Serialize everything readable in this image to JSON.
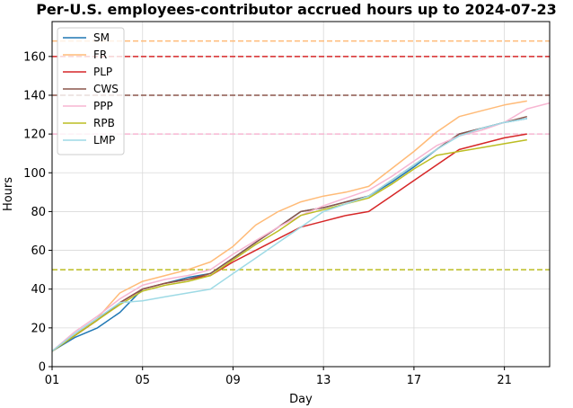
{
  "chart_data": {
    "type": "line",
    "title": "Per-U.S. employees-contributor accrued hours up to 2024-07-23",
    "xlabel": "Day",
    "ylabel": "Hours",
    "xlim": [
      1,
      23
    ],
    "ylim": [
      0,
      178
    ],
    "x_ticks": [
      "01",
      "05",
      "09",
      "13",
      "17",
      "21"
    ],
    "x_tick_values": [
      1,
      5,
      9,
      13,
      17,
      21
    ],
    "y_ticks": [
      0,
      20,
      40,
      60,
      80,
      100,
      120,
      140,
      160
    ],
    "grid": true,
    "legend_position": "top-left",
    "series": [
      {
        "name": "SM",
        "color": "#1f77b4",
        "x": [
          1,
          2,
          3,
          4,
          5,
          6,
          7,
          8,
          9,
          10,
          11,
          12,
          13,
          14,
          15,
          16,
          17,
          18,
          19,
          20,
          21,
          22
        ],
        "y": [
          8,
          15,
          20,
          28,
          40,
          43,
          46,
          48,
          56,
          64,
          72,
          80,
          82,
          85,
          88,
          95,
          103,
          112,
          120,
          123,
          126,
          128
        ]
      },
      {
        "name": "FR",
        "color": "#ffbb78",
        "x": [
          1,
          2,
          3,
          4,
          5,
          6,
          7,
          8,
          9,
          10,
          11,
          12,
          13,
          14,
          15,
          16,
          17,
          18,
          19,
          20,
          21,
          22
        ],
        "y": [
          8,
          16,
          25,
          38,
          44,
          47,
          50,
          54,
          62,
          73,
          80,
          85,
          88,
          90,
          93,
          102,
          111,
          121,
          129,
          132,
          135,
          137
        ]
      },
      {
        "name": "PLP",
        "color": "#d62728",
        "x": [
          1,
          2,
          3,
          4,
          5,
          6,
          7,
          8,
          9,
          10,
          11,
          12,
          13,
          14,
          15,
          16,
          17,
          18,
          19,
          20,
          21,
          22
        ],
        "y": [
          8,
          16,
          24,
          33,
          40,
          43,
          45,
          47,
          54,
          60,
          66,
          72,
          75,
          78,
          80,
          88,
          96,
          104,
          112,
          115,
          118,
          120
        ]
      },
      {
        "name": "CWS",
        "color": "#8c564b",
        "x": [
          1,
          2,
          3,
          4,
          5,
          6,
          7,
          8,
          9,
          10,
          11,
          12,
          13,
          14,
          15,
          16,
          17,
          18,
          19,
          20,
          21,
          22
        ],
        "y": [
          8,
          16,
          24,
          33,
          40,
          43,
          45,
          48,
          56,
          64,
          72,
          80,
          82,
          85,
          88,
          96,
          104,
          112,
          120,
          123,
          126,
          129
        ]
      },
      {
        "name": "PPP",
        "color": "#f7b6d2",
        "x": [
          1,
          2,
          3,
          4,
          5,
          6,
          7,
          8,
          9,
          10,
          11,
          12,
          13,
          14,
          15,
          16,
          17,
          18,
          19,
          20,
          21,
          22,
          23
        ],
        "y": [
          8,
          18,
          26,
          35,
          42,
          45,
          47,
          50,
          58,
          65,
          72,
          78,
          83,
          87,
          91,
          98,
          106,
          114,
          119,
          122,
          126,
          133,
          136
        ]
      },
      {
        "name": "RPB",
        "color": "#bcbd22",
        "x": [
          1,
          2,
          3,
          4,
          5,
          6,
          7,
          8,
          9,
          10,
          11,
          12,
          13,
          14,
          15,
          16,
          17,
          18,
          19,
          20,
          21,
          22
        ],
        "y": [
          8,
          16,
          24,
          32,
          39,
          42,
          44,
          47,
          55,
          63,
          70,
          78,
          81,
          84,
          87,
          94,
          102,
          109,
          111,
          113,
          115,
          117
        ]
      },
      {
        "name": "LMP",
        "color": "#9edae5",
        "x": [
          1,
          2,
          3,
          4,
          5,
          6,
          7,
          8,
          9,
          10,
          11,
          12,
          13,
          14,
          15,
          16,
          17,
          18,
          19,
          20,
          21,
          22
        ],
        "y": [
          8,
          17,
          25,
          33,
          34,
          36,
          38,
          40,
          48,
          56,
          64,
          72,
          80,
          84,
          88,
          96,
          104,
          112,
          119,
          123,
          126,
          128
        ]
      }
    ],
    "reference_lines": [
      {
        "y": 168,
        "color": "#ffbb78"
      },
      {
        "y": 160,
        "color": "#d62728"
      },
      {
        "y": 140,
        "color": "#8c564b"
      },
      {
        "y": 120,
        "color": "#f7b6d2"
      },
      {
        "y": 50,
        "color": "#bcbd22"
      }
    ]
  }
}
